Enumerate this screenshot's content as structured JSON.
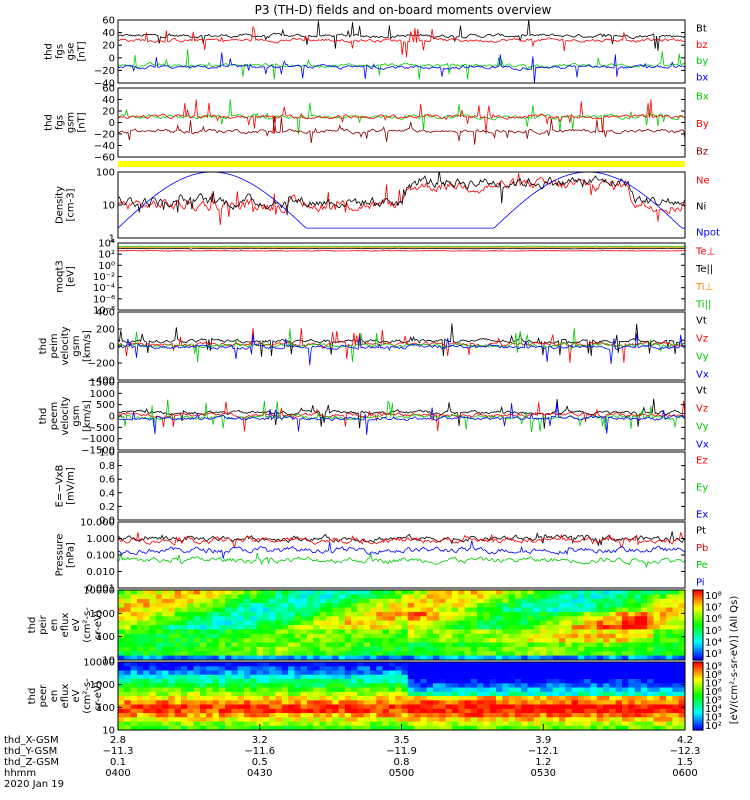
{
  "chart_data": {
    "type": "line",
    "title": "P3 (TH-D) fields and on-board moments overview",
    "panels": [
      {
        "id": "fgs-gse",
        "ylabel": [
          "thd",
          "fgs",
          "gse",
          "[nT]"
        ],
        "ylim": [
          -40,
          60
        ],
        "yticks": [
          "60",
          "40",
          "20",
          "0",
          "−20",
          "−40"
        ],
        "legend": [
          {
            "name": "Bt",
            "color": "#000000"
          },
          {
            "name": "bz",
            "color": "#ff0000"
          },
          {
            "name": "by",
            "color": "#00cc00"
          },
          {
            "name": "bx",
            "color": "#0000ff"
          }
        ]
      },
      {
        "id": "fgs-gsm",
        "ylabel": [
          "thd",
          "fgs",
          "gsm",
          "[nT]"
        ],
        "ylim": [
          -60,
          60
        ],
        "yticks": [
          "60",
          "40",
          "20",
          "0",
          "−20",
          "−40",
          "−60"
        ],
        "legend": [
          {
            "name": "Bx",
            "color": "#00cc00"
          },
          {
            "name": "By",
            "color": "#ff0000"
          },
          {
            "name": "Bz",
            "color": "#8b0000"
          }
        ]
      },
      {
        "id": "density",
        "ylabel": [
          "Density",
          "[cm-3]"
        ],
        "ylim": [
          1,
          100
        ],
        "yticks": [
          "100",
          "10",
          "1"
        ],
        "legend": [
          {
            "name": "Ne",
            "color": "#ff0000"
          },
          {
            "name": "Ni",
            "color": "#000000"
          },
          {
            "name": "Npot",
            "color": "#0000ff"
          }
        ]
      },
      {
        "id": "temperature",
        "ylabel": [
          "moqt3",
          "[eV]"
        ],
        "ylim": [
          1e-08,
          10000.0
        ],
        "yticks": [
          "10⁴",
          "10²",
          "10⁰",
          "10⁻²",
          "10⁻⁴",
          "10⁻⁶",
          "10⁻⁸"
        ],
        "legend": [
          {
            "name": "Te⊥",
            "color": "#ff0000"
          },
          {
            "name": "Te||",
            "color": "#000000"
          },
          {
            "name": "Ti⊥",
            "color": "#ff8800"
          },
          {
            "name": "Ti||",
            "color": "#00cc00"
          }
        ]
      },
      {
        "id": "peim-velocity",
        "ylabel": [
          "thd",
          "peim",
          "velocity",
          "gsm",
          "[km/s]"
        ],
        "ylim": [
          -400,
          400
        ],
        "yticks": [
          "400",
          "200",
          "0",
          "−200",
          "−400"
        ],
        "legend": [
          {
            "name": "Vt",
            "color": "#000000"
          },
          {
            "name": "Vz",
            "color": "#ff0000"
          },
          {
            "name": "Vy",
            "color": "#00cc00"
          },
          {
            "name": "Vx",
            "color": "#0000ff"
          }
        ]
      },
      {
        "id": "peem-velocity",
        "ylabel": [
          "thd",
          "peem",
          "velocity",
          "gsm",
          "[km/s]"
        ],
        "ylim": [
          -1500,
          1500
        ],
        "yticks": [
          "1500",
          "1000",
          "500",
          "0",
          "−500",
          "−1000",
          "−1500"
        ],
        "legend": [
          {
            "name": "Vt",
            "color": "#000000"
          },
          {
            "name": "Vz",
            "color": "#ff0000"
          },
          {
            "name": "Vy",
            "color": "#00cc00"
          },
          {
            "name": "Vx",
            "color": "#0000ff"
          }
        ]
      },
      {
        "id": "e-field",
        "ylabel": [
          "E=−VxB",
          "[mV/m]"
        ],
        "ylim": [
          0,
          1
        ],
        "yticks": [
          "1.0",
          "0.8",
          "0.6",
          "0.4",
          "0.2",
          "0.0"
        ],
        "legend": [
          {
            "name": "Ez",
            "color": "#ff0000"
          },
          {
            "name": "Ey",
            "color": "#00cc00"
          },
          {
            "name": "Ex",
            "color": "#0000ff"
          }
        ]
      },
      {
        "id": "pressure",
        "ylabel": [
          "Pressure",
          "[nPa]"
        ],
        "ylim": [
          0.001,
          10
        ],
        "yticks": [
          "10.000",
          "1.000",
          "0.100",
          "0.010",
          "0.001"
        ],
        "legend": [
          {
            "name": "Pt",
            "color": "#000000"
          },
          {
            "name": "Pb",
            "color": "#ff0000"
          },
          {
            "name": "Pe",
            "color": "#00cc00"
          },
          {
            "name": "Pi",
            "color": "#0000ff"
          }
        ]
      },
      {
        "id": "peir-spectrogram",
        "type": "heatmap",
        "ylabel": [
          "thd",
          "peir",
          "en",
          "eflux",
          "eV",
          "(cm²-s-",
          "sr-eV)"
        ],
        "yticks": [
          "10000",
          "1000",
          "100",
          "10"
        ],
        "colorbar_ticks": [
          "10⁸",
          "10⁷",
          "10⁶",
          "10⁵",
          "10⁴",
          "10³"
        ]
      },
      {
        "id": "peer-spectrogram",
        "type": "heatmap",
        "ylabel": [
          "thd",
          "peer",
          "en",
          "eflux",
          "eV",
          "(cm²-s-",
          "sr-eV)"
        ],
        "yticks": [
          "10000",
          "1000",
          "100",
          "10"
        ],
        "colorbar_ticks": [
          "10⁹",
          "10⁸",
          "10⁷",
          "10⁶",
          "10⁵",
          "10⁴",
          "10³",
          "10²"
        ]
      }
    ],
    "colorbar_label": "[eV/(cm²-s-sr-eV)] (All Qs)",
    "x_axis": {
      "rows": [
        {
          "label": "thd_X-GSM",
          "values": [
            "2.8",
            "3.2",
            "3.5",
            "3.9",
            "4.2"
          ]
        },
        {
          "label": "thd_Y-GSM",
          "values": [
            "−11.3",
            "−11.6",
            "−11.9",
            "−12.1",
            "−12.3"
          ]
        },
        {
          "label": "thd_Z-GSM",
          "values": [
            "0.1",
            "0.5",
            "0.8",
            "1.2",
            "1.5"
          ]
        },
        {
          "label": "hhmm",
          "values": [
            "0400",
            "0430",
            "0500",
            "0530",
            "0600"
          ]
        }
      ],
      "date": "2020 Jan 19"
    }
  }
}
